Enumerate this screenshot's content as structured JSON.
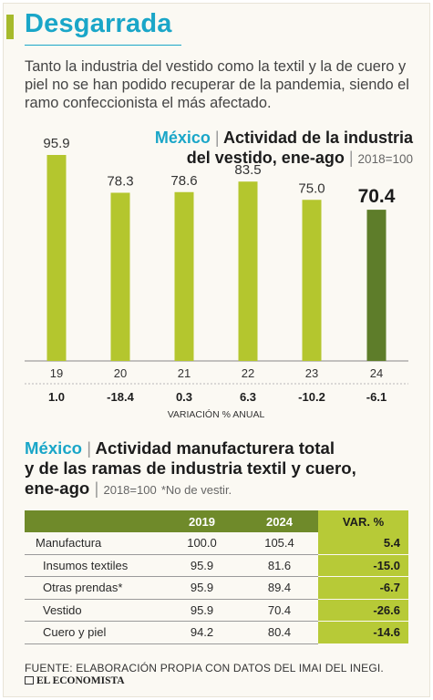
{
  "headline": "Desgarrada",
  "deck": "Tanto la industria del vestido como la textil y la de cuero y piel no se han podido recuperar de la pandemia, siendo el ramo confeccionista el más afectado.",
  "bar_chart": {
    "title_country": "México",
    "title_sep": "|",
    "title_line1": "Actividad de la industria",
    "title_line2": "del vestido, ene-ago",
    "title_sep2": "|",
    "base_label": "2018=100",
    "variation_caption": "VARIACIÓN % ANUAL"
  },
  "chart_data": {
    "type": "bar",
    "title": "Actividad de la industria del vestido, ene-ago",
    "categories": [
      "19",
      "20",
      "21",
      "22",
      "23",
      "24"
    ],
    "values": [
      95.9,
      78.3,
      78.6,
      83.5,
      75.0,
      70.4
    ],
    "value_labels": [
      "95.9",
      "78.3",
      "78.6",
      "83.5",
      "75.0",
      "70.4"
    ],
    "annual_variation": [
      "1.0",
      "-18.4",
      "0.3",
      "6.3",
      "-10.2",
      "-6.1"
    ],
    "colors": {
      "bar": "#b4c62e",
      "highlight": "#5e7d2a"
    },
    "highlight_index": 5
  },
  "table": {
    "title_country": "México",
    "title_sep": "|",
    "title_line1": "Actividad manufacturera total",
    "title_line2": "y de las ramas de industria textil y cuero,",
    "title_line3": "ene-ago",
    "title_sep2": "|",
    "base_label": "2018=100",
    "note": "*No de vestir.",
    "columns": [
      "",
      "2019",
      "2024",
      "VAR. %"
    ],
    "rows": [
      {
        "name": "Manufactura",
        "y2019": "100.0",
        "y2024": "105.4",
        "var": "5.4"
      },
      {
        "name": "Insumos textiles",
        "y2019": "95.9",
        "y2024": "81.6",
        "var": "-15.0"
      },
      {
        "name": "Otras prendas*",
        "y2019": "95.9",
        "y2024": "89.4",
        "var": "-6.7"
      },
      {
        "name": "Vestido",
        "y2019": "95.9",
        "y2024": "70.4",
        "var": "-26.6"
      },
      {
        "name": "Cuero y piel",
        "y2019": "94.2",
        "y2024": "80.4",
        "var": "-14.6"
      }
    ]
  },
  "source": "FUENTE: ELABORACIÓN PROPIA CON DATOS DEL IMAI DEL INEGI.",
  "logo_text": "EL ECONOMISTA",
  "colors": {
    "headline": "#1aa6c8",
    "accent": "#a6ba2c",
    "table_header": "#6f8a2a",
    "var_column": "#b7ca37"
  }
}
